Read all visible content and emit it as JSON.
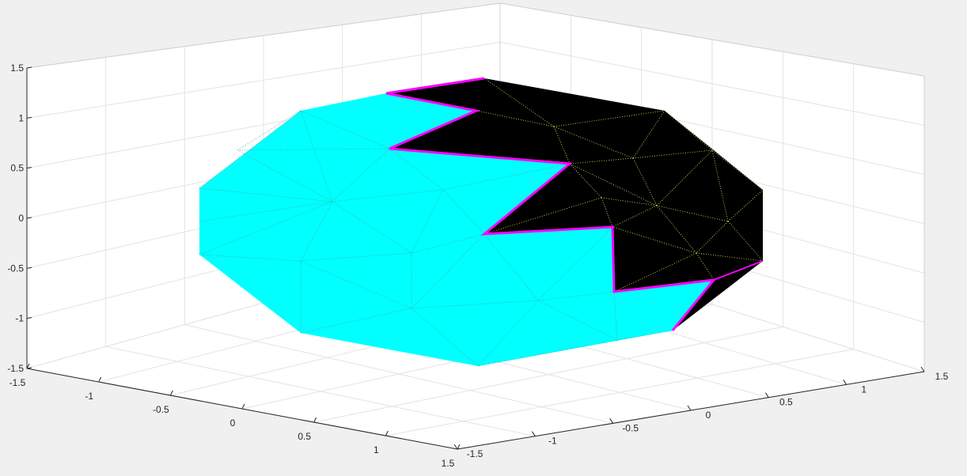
{
  "figure": {
    "background": "#f0f0f0",
    "axes_background": "#ffffff"
  },
  "chart_data": {
    "type": "surface3d",
    "title": "",
    "xlabel": "",
    "ylabel": "",
    "zlabel": "",
    "xlim": [
      -1.5,
      1.5
    ],
    "ylim": [
      -1.5,
      1.5
    ],
    "zlim": [
      -1.5,
      1.5
    ],
    "grid": true,
    "box": "3d",
    "x_ticks": [
      "-1.5",
      "-1",
      "-0.5",
      "0",
      "0.5",
      "1",
      "1.5"
    ],
    "y_ticks": [
      "-1.5",
      "-1",
      "-0.5",
      "0",
      "0.5",
      "1",
      "1.5"
    ],
    "z_ticks": [
      "-1.5",
      "-1",
      "-0.5",
      "0",
      "0.5",
      "1",
      "1.5"
    ],
    "object": "triangulated faceted ellipsoid (sphere-like polyhedron)",
    "regions": [
      {
        "name": "cyan region",
        "face_color": "#00ffff",
        "edge_style": "dotted"
      },
      {
        "name": "black region",
        "face_color": "#000000",
        "edge_color": "#f0f060",
        "edge_style": "dotted"
      }
    ],
    "boundary": {
      "color": "#ff00ff",
      "style": "solid"
    }
  }
}
